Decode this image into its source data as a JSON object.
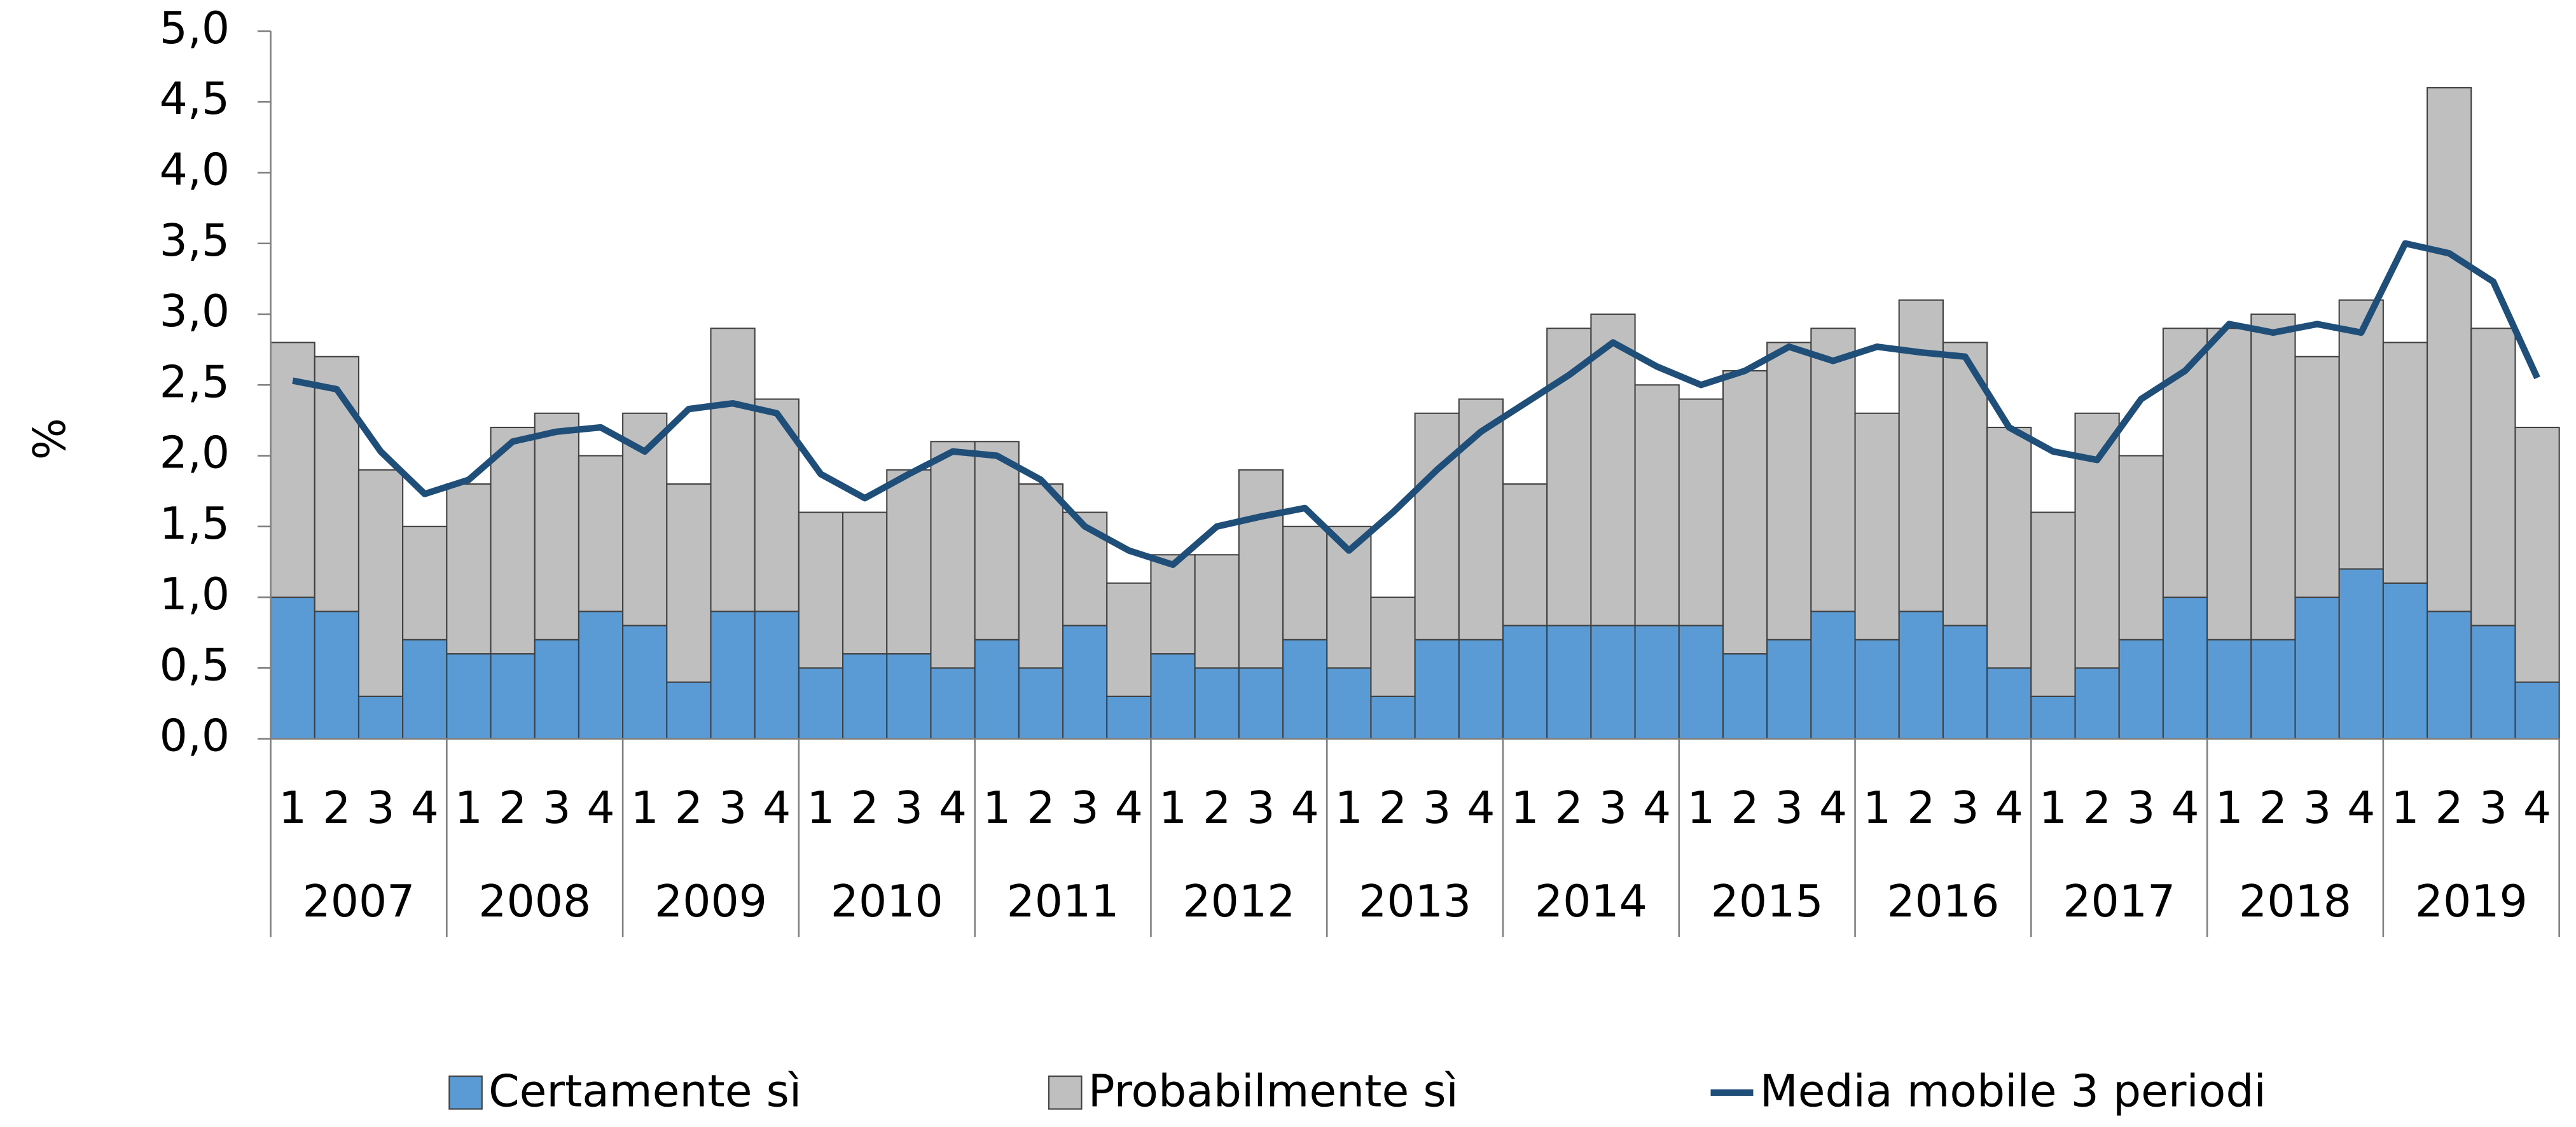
{
  "chart_data": {
    "type": "bar",
    "stacked": true,
    "y_label": "%",
    "categories": [
      "1",
      "2",
      "3",
      "4",
      "1",
      "2",
      "3",
      "4",
      "1",
      "2",
      "3",
      "4",
      "1",
      "2",
      "3",
      "4",
      "1",
      "2",
      "3",
      "4",
      "1",
      "2",
      "3",
      "4",
      "1",
      "2",
      "3",
      "4",
      "1",
      "2",
      "3",
      "4",
      "1",
      "2",
      "3",
      "4",
      "1",
      "2",
      "3",
      "4",
      "1",
      "2",
      "3",
      "4",
      "1",
      "2",
      "3",
      "4",
      "1",
      "2",
      "3",
      "4"
    ],
    "year_groups": [
      "2007",
      "2008",
      "2009",
      "2010",
      "2011",
      "2012",
      "2013",
      "2014",
      "2015",
      "2016",
      "2017",
      "2018",
      "2019"
    ],
    "series": [
      {
        "name": "Certamente sì",
        "color": "#5b9bd5",
        "values": [
          1.0,
          0.9,
          0.3,
          0.7,
          0.6,
          0.6,
          0.7,
          0.9,
          0.8,
          0.4,
          0.9,
          0.9,
          0.5,
          0.6,
          0.6,
          0.5,
          0.7,
          0.5,
          0.8,
          0.3,
          0.6,
          0.5,
          0.5,
          0.7,
          0.5,
          0.3,
          0.7,
          0.7,
          0.8,
          0.8,
          0.8,
          0.8,
          0.8,
          0.6,
          0.7,
          0.9,
          0.7,
          0.9,
          0.8,
          0.5,
          0.3,
          0.5,
          0.7,
          1.0,
          0.7,
          0.7,
          1.0,
          1.2,
          1.1,
          0.9,
          0.8,
          0.4
        ]
      },
      {
        "name": "Probabilmente sì",
        "color": "#bfbfbf",
        "values": [
          1.8,
          1.8,
          1.6,
          0.8,
          1.2,
          1.6,
          1.6,
          1.1,
          1.5,
          1.4,
          2.0,
          1.5,
          1.1,
          1.0,
          1.3,
          1.6,
          1.4,
          1.3,
          0.8,
          0.8,
          0.7,
          0.8,
          1.4,
          0.8,
          1.0,
          0.7,
          1.6,
          1.7,
          1.0,
          2.1,
          2.2,
          1.7,
          1.6,
          2.0,
          2.1,
          2.0,
          1.6,
          2.2,
          2.0,
          1.7,
          1.3,
          1.8,
          1.3,
          1.9,
          2.2,
          2.3,
          1.7,
          1.9,
          1.7,
          3.7,
          2.1,
          1.8
        ]
      },
      {
        "name": "Media mobile 3 periodi",
        "color": "#1f4e79",
        "type": "line",
        "values": [
          2.53,
          2.47,
          2.03,
          1.73,
          1.83,
          2.1,
          2.17,
          2.2,
          2.03,
          2.33,
          2.37,
          2.3,
          1.87,
          1.7,
          1.87,
          2.03,
          2.0,
          1.83,
          1.5,
          1.33,
          1.23,
          1.5,
          1.57,
          1.63,
          1.33,
          1.6,
          1.9,
          2.17,
          2.37,
          2.57,
          2.8,
          2.63,
          2.5,
          2.6,
          2.77,
          2.67,
          2.77,
          2.73,
          2.7,
          2.2,
          2.03,
          1.97,
          2.4,
          2.6,
          2.93,
          2.87,
          2.93,
          2.87,
          3.5,
          3.43,
          3.23,
          2.55
        ]
      }
    ],
    "ylim": [
      0,
      5
    ],
    "yticks": [
      {
        "value": 0,
        "label": "0,0"
      },
      {
        "value": 0.5,
        "label": "0,5"
      },
      {
        "value": 1,
        "label": "1,0"
      },
      {
        "value": 1.5,
        "label": "1,5"
      },
      {
        "value": 2,
        "label": "2,0"
      },
      {
        "value": 2.5,
        "label": "2,5"
      },
      {
        "value": 3,
        "label": "3,0"
      },
      {
        "value": 3.5,
        "label": "3,5"
      },
      {
        "value": 4,
        "label": "4,0"
      },
      {
        "value": 4.5,
        "label": "4,5"
      },
      {
        "value": 5,
        "label": "5,0"
      }
    ],
    "legend": "bottom"
  }
}
